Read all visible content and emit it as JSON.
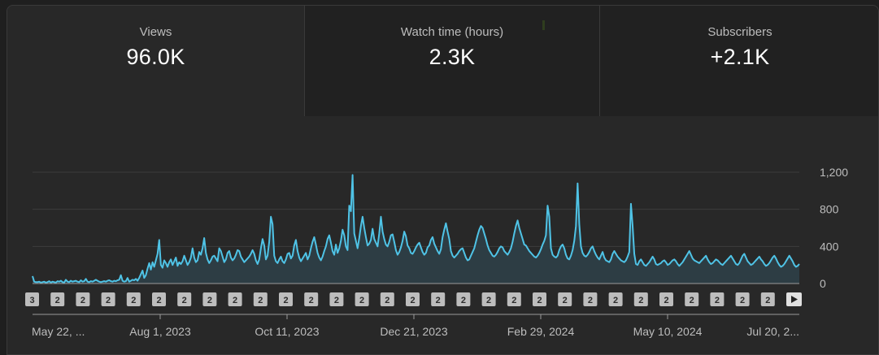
{
  "metrics": {
    "views": {
      "label": "Views",
      "value": "96.0K"
    },
    "watch_time": {
      "label": "Watch time (hours)",
      "value": "2.3K"
    },
    "subscribers": {
      "label": "Subscribers",
      "value": "+2.1K"
    }
  },
  "colors": {
    "line": "#4fc3e6",
    "area": "#2e3f47",
    "grid": "#3d3d3d",
    "badge": "#bdbdbd",
    "axis_text": "#bdbdbd"
  },
  "badge_icons": [
    "play-icon"
  ],
  "chart_data": {
    "type": "area",
    "series": [
      {
        "values": [
          80,
          20,
          15,
          15,
          20,
          10,
          15,
          20,
          10,
          15,
          25,
          10,
          20,
          15,
          10,
          25,
          20,
          30,
          15,
          10,
          40,
          20,
          15,
          30,
          20,
          25,
          30,
          20,
          15,
          35,
          20,
          25,
          50,
          20,
          15,
          25,
          20,
          30,
          40,
          30,
          20,
          15,
          20,
          25,
          20,
          30,
          35,
          25,
          20,
          30,
          25,
          35,
          40,
          90,
          30,
          20,
          25,
          60,
          20,
          30,
          40,
          35,
          50,
          30,
          60,
          100,
          140,
          60,
          90,
          160,
          220,
          150,
          230,
          180,
          250,
          320,
          470,
          200,
          170,
          250,
          220,
          180,
          230,
          260,
          200,
          240,
          280,
          190,
          230,
          210,
          240,
          300,
          250,
          200,
          230,
          280,
          380,
          280,
          230,
          250,
          340,
          310,
          380,
          490,
          330,
          260,
          220,
          250,
          290,
          300,
          270,
          240,
          380,
          350,
          290,
          230,
          260,
          330,
          350,
          280,
          250,
          270,
          310,
          360,
          350,
          290,
          260,
          230,
          250,
          270,
          290,
          320,
          360,
          320,
          250,
          210,
          260,
          380,
          480,
          410,
          260,
          300,
          450,
          720,
          640,
          300,
          240,
          220,
          260,
          290,
          240,
          220,
          260,
          320,
          330,
          270,
          300,
          410,
          470,
          350,
          280,
          240,
          270,
          300,
          330,
          260,
          300,
          380,
          450,
          500,
          420,
          330,
          280,
          250,
          290,
          350,
          400,
          480,
          520,
          440,
          350,
          310,
          420,
          330,
          380,
          460,
          580,
          520,
          400,
          360,
          840,
          780,
          1170,
          540,
          460,
          380,
          490,
          620,
          720,
          600,
          500,
          410,
          430,
          470,
          590,
          480,
          440,
          400,
          540,
          720,
          560,
          480,
          420,
          400,
          450,
          520,
          530,
          450,
          360,
          310,
          340,
          390,
          460,
          560,
          510,
          410,
          380,
          330,
          320,
          350,
          390,
          420,
          440,
          390,
          340,
          310,
          330,
          390,
          410,
          470,
          500,
          430,
          390,
          350,
          320,
          370,
          500,
          580,
          650,
          560,
          480,
          350,
          300,
          280,
          300,
          320,
          350,
          370,
          380,
          330,
          280,
          250,
          260,
          300,
          340,
          380,
          450,
          520,
          580,
          620,
          600,
          540,
          480,
          410,
          360,
          330,
          300,
          290,
          310,
          340,
          380,
          400,
          390,
          350,
          330,
          310,
          340,
          380,
          450,
          540,
          620,
          680,
          600,
          540,
          480,
          420,
          410,
          380,
          350,
          330,
          310,
          290,
          280,
          300,
          330,
          370,
          420,
          460,
          520,
          840,
          720,
          380,
          310,
          290,
          280,
          300,
          360,
          400,
          420,
          380,
          310,
          270,
          260,
          300,
          360,
          460,
          620,
          1080,
          640,
          400,
          330,
          300,
          290,
          310,
          340,
          380,
          400,
          350,
          310,
          280,
          260,
          300,
          340,
          280,
          250,
          240,
          230,
          260,
          320,
          350,
          320,
          290,
          270,
          250,
          240,
          230,
          250,
          290,
          340,
          860,
          620,
          320,
          210,
          200,
          240,
          260,
          230,
          200,
          190,
          210,
          230,
          260,
          290,
          260,
          210,
          200,
          210,
          220,
          240,
          250,
          230,
          200,
          210,
          230,
          250,
          260,
          240,
          210,
          190,
          210,
          230,
          260,
          290,
          320,
          350,
          310,
          270,
          250,
          240,
          230,
          220,
          240,
          260,
          280,
          300,
          260,
          230,
          210,
          220,
          240,
          260,
          250,
          230,
          210,
          200,
          220,
          240,
          260,
          280,
          300,
          270,
          240,
          210,
          200,
          220,
          260,
          300,
          320,
          280,
          240,
          220,
          200,
          210,
          230,
          250,
          270,
          290,
          260,
          240,
          210,
          190,
          200,
          220,
          250,
          280,
          300,
          270,
          230,
          200,
          180,
          190,
          210,
          240,
          270,
          300,
          270,
          240,
          200,
          180,
          190,
          210
        ]
      }
    ],
    "ylim": [
      0,
      1200
    ],
    "yticks": [
      0,
      400,
      800,
      1200
    ],
    "ytick_labels": [
      "0",
      "400",
      "800",
      "1,200"
    ],
    "x_tick_labels": [
      "May 22, ...",
      "Aug 1, 2023",
      "Oct 11, 2023",
      "Dec 21, 2023",
      "Feb 29, 2024",
      "May 10, 2024",
      "Jul 20, 2..."
    ],
    "badges": [
      "3",
      "2",
      "2",
      "2",
      "2",
      "2",
      "2",
      "2",
      "2",
      "2",
      "2",
      "2",
      "2",
      "2",
      "2",
      "2",
      "2",
      "2",
      "2",
      "2",
      "2",
      "2",
      "2",
      "2",
      "2",
      "2",
      "2",
      "2",
      "2",
      "2"
    ],
    "grid": true
  }
}
